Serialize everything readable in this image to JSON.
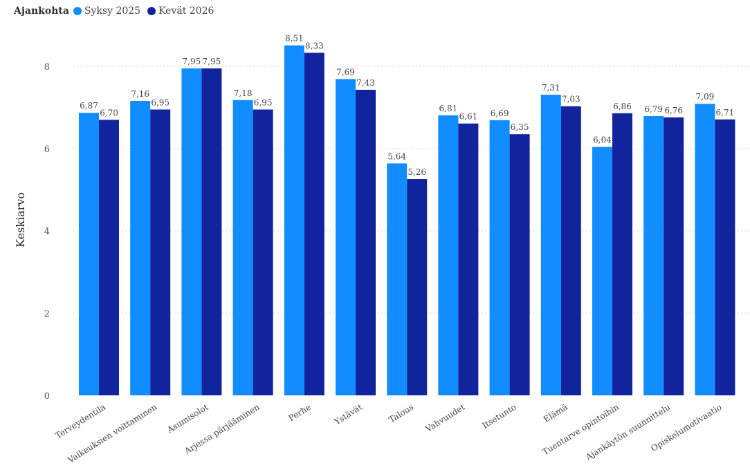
{
  "chart_data": {
    "type": "bar",
    "legend_title": "Ajankohta",
    "ylabel": "Keskiarvo",
    "xlabel": "",
    "ylim": [
      0,
      9
    ],
    "yticks": [
      "0",
      "2",
      "4",
      "6",
      "8"
    ],
    "grid": "horizontal-dotted",
    "legend_position": "top-left",
    "categories": [
      "Terveydentila",
      "Vaikeuksien voittaminen",
      "Asumisolot",
      "Arjessa pärjääminen",
      "Perhe",
      "Ystävät",
      "Talous",
      "Vahvuudet",
      "Itsetunto",
      "Elämä",
      "Tuentarve opintoihin",
      "Ajankäytön suunnittelu",
      "Opiskelumotivaatio"
    ],
    "series": [
      {
        "name": "Syksy 2025",
        "color": "#118dff",
        "values": [
          6.87,
          7.16,
          7.95,
          7.18,
          8.51,
          7.69,
          5.64,
          6.81,
          6.69,
          7.31,
          6.04,
          6.79,
          7.09
        ],
        "labels": [
          "6,87",
          "7,16",
          "7,95",
          "7,18",
          "8,51",
          "7,69",
          "5,64",
          "6,81",
          "6,69",
          "7,31",
          "6,04",
          "6,79",
          "7,09"
        ]
      },
      {
        "name": "Kevät 2026",
        "color": "#12239e",
        "values": [
          6.7,
          6.95,
          7.95,
          6.95,
          8.33,
          7.43,
          5.26,
          6.61,
          6.35,
          7.03,
          6.86,
          6.76,
          6.71
        ],
        "labels": [
          "6,70",
          "6,95",
          "7,95",
          "6,95",
          "8,33",
          "7,43",
          "5,26",
          "6,61",
          "6,35",
          "7,03",
          "6,86",
          "6,76",
          "6,71"
        ]
      }
    ]
  }
}
